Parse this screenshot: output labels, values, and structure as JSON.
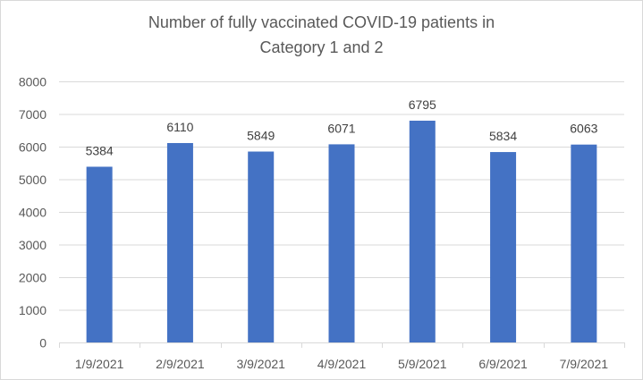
{
  "chart_data": {
    "type": "bar",
    "title_lines": [
      "Number of fully vaccinated COVID-19 patients in",
      "Category 1 and 2"
    ],
    "categories": [
      "1/9/2021",
      "2/9/2021",
      "3/9/2021",
      "4/9/2021",
      "5/9/2021",
      "6/9/2021",
      "7/9/2021"
    ],
    "values": [
      5384,
      6110,
      5849,
      6071,
      6795,
      5834,
      6063
    ],
    "yticks": [
      "0",
      "1000",
      "2000",
      "3000",
      "4000",
      "5000",
      "6000",
      "7000",
      "8000"
    ],
    "ylim": [
      0,
      8000
    ],
    "xlabel": "",
    "ylabel": "",
    "grid": true,
    "bar_color": "#4472C4",
    "text_color": "#595959",
    "grid_color": "#D9D9D9"
  }
}
